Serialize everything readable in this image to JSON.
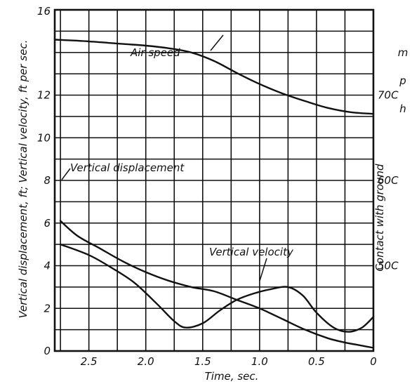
{
  "chart_data": {
    "type": "line",
    "title": "",
    "xlabel": "Time, sec.",
    "ylabel": "Vertical displacement, ft; Vertical velocity, ft per sec.",
    "y2label": "Air speed, mph",
    "right_annotation": "Contact with ground",
    "xlim": [
      2.8,
      0
    ],
    "ylim": [
      0,
      16
    ],
    "y2lim": [
      40,
      80
    ],
    "x_ticks": [
      "2.5",
      "2.0",
      "1.5",
      "1.0",
      "0.5",
      "0"
    ],
    "y_ticks": [
      "0",
      "2",
      "4",
      "6",
      "8",
      "10",
      "12"
    ],
    "y_top_tick": "16",
    "y2_ticks": [
      "50",
      "60",
      "70"
    ],
    "y2_tick_suffix": "C",
    "y2_unit_letters": "mph",
    "grid": true,
    "series": [
      {
        "name": "Air speed",
        "axis": "right",
        "x": [
          2.8,
          2.5,
          2.2,
          2.0,
          1.8,
          1.6,
          1.4,
          1.2,
          1.0,
          0.8,
          0.6,
          0.4,
          0.2,
          0.0
        ],
        "y": [
          76.5,
          76.3,
          76.0,
          75.8,
          75.5,
          75.0,
          74.0,
          72.6,
          71.3,
          70.2,
          69.3,
          68.5,
          68.0,
          67.8
        ]
      },
      {
        "name": "Vertical displacement",
        "axis": "left",
        "x": [
          2.75,
          2.6,
          2.4,
          2.2,
          2.0,
          1.8,
          1.6,
          1.4,
          1.2,
          1.0,
          0.8,
          0.6,
          0.4,
          0.25,
          0.1,
          0.0
        ],
        "y": [
          6.1,
          5.4,
          4.8,
          4.2,
          3.7,
          3.3,
          3.0,
          2.8,
          2.4,
          2.0,
          1.5,
          1.0,
          0.6,
          0.4,
          0.25,
          0.15
        ]
      },
      {
        "name": "Vertical velocity",
        "axis": "left",
        "x": [
          2.75,
          2.5,
          2.3,
          2.1,
          1.9,
          1.75,
          1.65,
          1.5,
          1.35,
          1.2,
          1.05,
          0.9,
          0.75,
          0.62,
          0.5,
          0.35,
          0.22,
          0.1,
          0.0
        ],
        "y": [
          5.0,
          4.5,
          3.9,
          3.2,
          2.2,
          1.4,
          1.1,
          1.3,
          1.9,
          2.4,
          2.7,
          2.9,
          3.0,
          2.6,
          1.8,
          1.1,
          0.9,
          1.1,
          1.6
        ]
      }
    ]
  }
}
